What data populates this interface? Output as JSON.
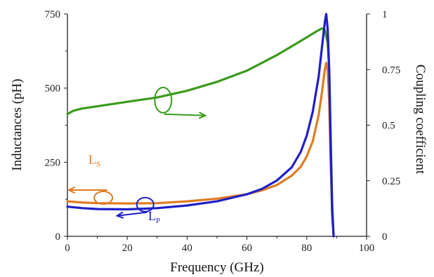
{
  "chart_data": {
    "type": "line",
    "xlabel": "Frequency (GHz)",
    "ylabel_left": "Inductances (pH)",
    "ylabel_right": "Coupling coefficient",
    "xlim": [
      0,
      100
    ],
    "ylim_left": [
      0,
      750
    ],
    "ylim_right": [
      0,
      1
    ],
    "x_ticks": [
      "0",
      "20",
      "40",
      "60",
      "80",
      "100"
    ],
    "y_left_ticks": [
      "0",
      "250",
      "500",
      "750"
    ],
    "y_right_ticks": [
      "0",
      "0.25",
      "0.5",
      "0.75",
      "1"
    ],
    "grid": false,
    "colors": {
      "Ls": "#e07b21",
      "Lp": "#1f1fc8",
      "k": "#3a9a1c"
    },
    "series": [
      {
        "name": "Ls",
        "label_main": "L",
        "label_sub": "S",
        "axis": "left",
        "x": [
          0,
          5,
          10,
          20,
          30,
          40,
          50,
          60,
          65,
          70,
          75,
          78,
          80,
          82,
          84,
          85,
          86,
          86.5,
          87,
          87.5,
          88,
          88.5,
          89
        ],
        "values": [
          118,
          114,
          112,
          111,
          112,
          118,
          127,
          142,
          155,
          173,
          205,
          235,
          270,
          320,
          410,
          480,
          560,
          585,
          560,
          450,
          250,
          80,
          0
        ]
      },
      {
        "name": "Lp",
        "label_main": "L",
        "label_sub": "P",
        "axis": "left",
        "x": [
          0,
          5,
          10,
          20,
          30,
          40,
          50,
          60,
          65,
          70,
          75,
          78,
          80,
          82,
          84,
          85,
          86,
          86.5,
          87,
          87.5,
          88,
          88.5,
          89
        ],
        "values": [
          100,
          95,
          92,
          91,
          95,
          104,
          118,
          142,
          160,
          188,
          233,
          285,
          340,
          420,
          540,
          630,
          720,
          750,
          700,
          560,
          300,
          80,
          0
        ]
      },
      {
        "name": "k",
        "axis": "right",
        "x": [
          0,
          2,
          5,
          10,
          20,
          30,
          40,
          50,
          60,
          70,
          75,
          80,
          83,
          85,
          86,
          87,
          87.5,
          88,
          88.5,
          89
        ],
        "values": [
          0.55,
          0.565,
          0.575,
          0.585,
          0.605,
          0.625,
          0.655,
          0.695,
          0.745,
          0.815,
          0.855,
          0.895,
          0.92,
          0.935,
          0.93,
          0.87,
          0.75,
          0.45,
          0.15,
          0
        ]
      }
    ],
    "annotations": [
      {
        "series": "Ls",
        "arrow": "left",
        "x": 12,
        "y": 130
      },
      {
        "series": "Lp",
        "arrow": "left",
        "x": 26,
        "y": 100
      },
      {
        "series": "k",
        "arrow": "right",
        "x": 32,
        "y": 0.6
      }
    ]
  }
}
